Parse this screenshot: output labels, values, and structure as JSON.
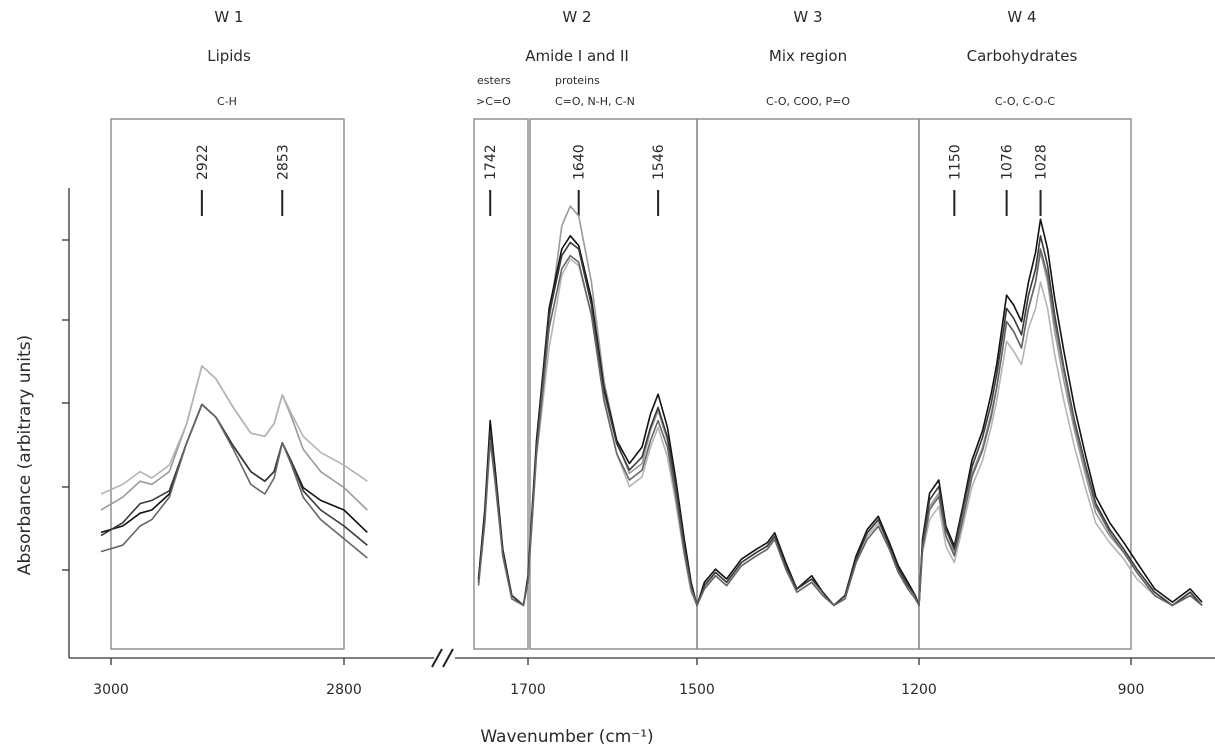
{
  "chart_data": {
    "type": "line",
    "xlabel": "Wavenumber (cm⁻¹)",
    "ylabel": "Absorbance (arbitrary units)",
    "x_axis_break": true,
    "x_reversed": true,
    "panels": [
      {
        "xlim": [
          3015,
          2770
        ],
        "xticks": [
          3000,
          2800
        ]
      },
      {
        "xlim": [
          1760,
          775
        ],
        "xticks": [
          1700,
          1500,
          1200,
          900
        ]
      }
    ],
    "regions": [
      {
        "id": "W 1",
        "name": "Lipids",
        "bonds": "C-H",
        "range": [
          3000,
          2800
        ],
        "peaks": [
          2922,
          2853
        ]
      },
      {
        "id": "",
        "name": "",
        "bonds": ">C=O",
        "sub_label": "esters",
        "range": [
          1760,
          1700
        ],
        "peaks": [
          1742
        ]
      },
      {
        "id": "W 2",
        "name": "Amide I and II",
        "bonds": "C=O, N-H, C-N",
        "sub_label": "proteins",
        "range": [
          1700,
          1500
        ],
        "peaks": [
          1640,
          1546
        ]
      },
      {
        "id": "W 3",
        "name": "Mix region",
        "bonds": "C-O, COO, P=O",
        "range": [
          1500,
          1200
        ],
        "peaks": []
      },
      {
        "id": "W 4",
        "name": "Carbohydrates",
        "bonds": "C-O, C-O-C",
        "range": [
          1200,
          900
        ],
        "peaks": [
          1150,
          1076,
          1028
        ]
      }
    ],
    "series_colors": [
      "#9a9a9a",
      "#b5b5b5",
      "#111111",
      "#3a3a3a",
      "#666666"
    ],
    "series": [
      {
        "lipid": {
          "x": [
            3010,
            2990,
            2975,
            2965,
            2950,
            2935,
            2922,
            2910,
            2895,
            2880,
            2868,
            2860,
            2853,
            2845,
            2835,
            2820,
            2800,
            2780
          ],
          "y": [
            0.25,
            0.29,
            0.34,
            0.33,
            0.37,
            0.52,
            0.7,
            0.66,
            0.57,
            0.49,
            0.48,
            0.52,
            0.61,
            0.54,
            0.44,
            0.37,
            0.32,
            0.25
          ]
        },
        "fp": {
          "x": [
            1755,
            1748,
            1742,
            1736,
            1728,
            1718,
            1705,
            1700,
            1690,
            1675,
            1660,
            1650,
            1640,
            1625,
            1610,
            1595,
            1580,
            1565,
            1555,
            1546,
            1535,
            1525,
            1515,
            1507,
            1500,
            1490,
            1475,
            1460,
            1440,
            1420,
            1405,
            1395,
            1380,
            1365,
            1345,
            1330,
            1315,
            1300,
            1285,
            1270,
            1255,
            1240,
            1228,
            1215,
            1205,
            1200,
            1195,
            1185,
            1172,
            1162,
            1150,
            1138,
            1125,
            1110,
            1098,
            1090,
            1080,
            1076,
            1066,
            1055,
            1045,
            1035,
            1028,
            1018,
            1008,
            995,
            980,
            965,
            950,
            930,
            910,
            890,
            860,
            830,
            800,
            780
          ],
          "y": [
            0.1,
            0.3,
            0.56,
            0.4,
            0.18,
            0.05,
            0.02,
            0.1,
            0.5,
            0.88,
            1.17,
            1.23,
            1.2,
            1.0,
            0.7,
            0.52,
            0.42,
            0.45,
            0.55,
            0.61,
            0.52,
            0.37,
            0.2,
            0.08,
            0.02,
            0.08,
            0.12,
            0.09,
            0.15,
            0.18,
            0.2,
            0.23,
            0.14,
            0.07,
            0.1,
            0.06,
            0.02,
            0.05,
            0.16,
            0.24,
            0.28,
            0.2,
            0.13,
            0.08,
            0.05,
            0.02,
            0.2,
            0.32,
            0.36,
            0.23,
            0.18,
            0.29,
            0.42,
            0.5,
            0.6,
            0.68,
            0.82,
            0.88,
            0.85,
            0.8,
            0.92,
            1.0,
            1.09,
            1.0,
            0.85,
            0.7,
            0.55,
            0.42,
            0.3,
            0.23,
            0.18,
            0.12,
            0.05,
            0.02,
            0.06,
            0.02
          ]
        }
      },
      {
        "lipid": {
          "x": [
            3010,
            2990,
            2975,
            2965,
            2950,
            2935,
            2922,
            2910,
            2895,
            2880,
            2868,
            2860,
            2853,
            2845,
            2835,
            2820,
            2800,
            2780
          ],
          "y": [
            0.3,
            0.33,
            0.37,
            0.35,
            0.39,
            0.52,
            0.7,
            0.66,
            0.57,
            0.49,
            0.48,
            0.52,
            0.61,
            0.55,
            0.48,
            0.43,
            0.39,
            0.34
          ]
        },
        "fp": {
          "x": [
            1755,
            1748,
            1742,
            1736,
            1728,
            1718,
            1705,
            1700,
            1690,
            1675,
            1660,
            1650,
            1640,
            1625,
            1610,
            1595,
            1580,
            1565,
            1555,
            1546,
            1535,
            1525,
            1515,
            1507,
            1500,
            1490,
            1475,
            1460,
            1440,
            1420,
            1405,
            1395,
            1380,
            1365,
            1345,
            1330,
            1315,
            1300,
            1285,
            1270,
            1255,
            1240,
            1228,
            1215,
            1205,
            1200,
            1195,
            1185,
            1172,
            1162,
            1150,
            1138,
            1125,
            1110,
            1098,
            1090,
            1080,
            1076,
            1066,
            1055,
            1045,
            1035,
            1028,
            1018,
            1008,
            995,
            980,
            965,
            950,
            930,
            910,
            890,
            860,
            830,
            800,
            780
          ],
          "y": [
            0.09,
            0.28,
            0.54,
            0.39,
            0.17,
            0.04,
            0.02,
            0.09,
            0.47,
            0.8,
            1.02,
            1.07,
            1.05,
            0.9,
            0.65,
            0.48,
            0.38,
            0.41,
            0.5,
            0.56,
            0.47,
            0.33,
            0.17,
            0.06,
            0.02,
            0.07,
            0.11,
            0.08,
            0.14,
            0.17,
            0.19,
            0.22,
            0.13,
            0.06,
            0.09,
            0.05,
            0.02,
            0.04,
            0.15,
            0.23,
            0.27,
            0.19,
            0.12,
            0.07,
            0.04,
            0.02,
            0.18,
            0.28,
            0.32,
            0.2,
            0.15,
            0.26,
            0.38,
            0.46,
            0.56,
            0.64,
            0.77,
            0.82,
            0.79,
            0.75,
            0.86,
            0.92,
            1.0,
            0.92,
            0.78,
            0.64,
            0.5,
            0.38,
            0.27,
            0.21,
            0.16,
            0.1,
            0.05,
            0.02,
            0.05,
            0.02
          ]
        }
      },
      {
        "lipid": {
          "x": [
            3010,
            2990,
            2975,
            2965,
            2950,
            2935,
            2922,
            2910,
            2895,
            2880,
            2868,
            2860,
            2853,
            2845,
            2835,
            2820,
            2800,
            2780
          ],
          "y": [
            0.18,
            0.2,
            0.24,
            0.25,
            0.3,
            0.46,
            0.58,
            0.54,
            0.45,
            0.37,
            0.34,
            0.37,
            0.46,
            0.4,
            0.32,
            0.28,
            0.25,
            0.18
          ]
        },
        "fp": {
          "x": [
            1755,
            1748,
            1742,
            1736,
            1728,
            1718,
            1705,
            1700,
            1690,
            1675,
            1660,
            1650,
            1640,
            1625,
            1610,
            1595,
            1580,
            1565,
            1555,
            1546,
            1535,
            1525,
            1515,
            1507,
            1500,
            1490,
            1475,
            1460,
            1440,
            1420,
            1405,
            1395,
            1380,
            1365,
            1345,
            1330,
            1315,
            1300,
            1285,
            1270,
            1255,
            1240,
            1228,
            1215,
            1205,
            1200,
            1195,
            1185,
            1172,
            1162,
            1150,
            1138,
            1125,
            1110,
            1098,
            1090,
            1080,
            1076,
            1066,
            1055,
            1045,
            1035,
            1028,
            1018,
            1008,
            995,
            980,
            965,
            950,
            930,
            910,
            890,
            860,
            830,
            800,
            780
          ],
          "y": [
            0.1,
            0.31,
            0.58,
            0.42,
            0.19,
            0.05,
            0.02,
            0.11,
            0.52,
            0.92,
            1.1,
            1.14,
            1.11,
            0.95,
            0.68,
            0.52,
            0.45,
            0.5,
            0.6,
            0.66,
            0.56,
            0.4,
            0.22,
            0.09,
            0.02,
            0.09,
            0.13,
            0.1,
            0.16,
            0.19,
            0.21,
            0.24,
            0.15,
            0.07,
            0.11,
            0.06,
            0.02,
            0.05,
            0.17,
            0.25,
            0.29,
            0.21,
            0.14,
            0.09,
            0.05,
            0.02,
            0.22,
            0.36,
            0.4,
            0.26,
            0.2,
            0.32,
            0.46,
            0.55,
            0.66,
            0.75,
            0.9,
            0.96,
            0.93,
            0.88,
            1.0,
            1.09,
            1.19,
            1.1,
            0.95,
            0.79,
            0.62,
            0.48,
            0.35,
            0.27,
            0.21,
            0.15,
            0.07,
            0.03,
            0.07,
            0.03
          ]
        }
      },
      {
        "lipid": {
          "x": [
            3010,
            2990,
            2975,
            2965,
            2950,
            2935,
            2922,
            2910,
            2895,
            2880,
            2868,
            2860,
            2853,
            2845,
            2835,
            2820,
            2800,
            2780
          ],
          "y": [
            0.17,
            0.21,
            0.27,
            0.28,
            0.31,
            0.46,
            0.58,
            0.54,
            0.45,
            0.37,
            0.34,
            0.37,
            0.46,
            0.4,
            0.31,
            0.25,
            0.2,
            0.14
          ]
        },
        "fp": {
          "x": [
            1755,
            1748,
            1742,
            1736,
            1728,
            1718,
            1705,
            1700,
            1690,
            1675,
            1660,
            1650,
            1640,
            1625,
            1610,
            1595,
            1580,
            1565,
            1555,
            1546,
            1535,
            1525,
            1515,
            1507,
            1500,
            1490,
            1475,
            1460,
            1440,
            1420,
            1405,
            1395,
            1380,
            1365,
            1345,
            1330,
            1315,
            1300,
            1285,
            1270,
            1255,
            1240,
            1228,
            1215,
            1205,
            1200,
            1195,
            1185,
            1172,
            1162,
            1150,
            1138,
            1125,
            1110,
            1098,
            1090,
            1080,
            1076,
            1066,
            1055,
            1045,
            1035,
            1028,
            1018,
            1008,
            995,
            980,
            965,
            950,
            930,
            910,
            890,
            860,
            830,
            800,
            780
          ],
          "y": [
            0.09,
            0.29,
            0.55,
            0.4,
            0.18,
            0.05,
            0.02,
            0.1,
            0.5,
            0.9,
            1.08,
            1.12,
            1.1,
            0.93,
            0.67,
            0.51,
            0.43,
            0.47,
            0.56,
            0.62,
            0.53,
            0.38,
            0.2,
            0.08,
            0.02,
            0.08,
            0.12,
            0.09,
            0.15,
            0.18,
            0.2,
            0.23,
            0.14,
            0.07,
            0.1,
            0.06,
            0.02,
            0.05,
            0.16,
            0.24,
            0.28,
            0.2,
            0.13,
            0.08,
            0.05,
            0.02,
            0.21,
            0.34,
            0.38,
            0.25,
            0.19,
            0.31,
            0.44,
            0.53,
            0.63,
            0.72,
            0.86,
            0.92,
            0.89,
            0.84,
            0.96,
            1.04,
            1.14,
            1.05,
            0.9,
            0.74,
            0.58,
            0.45,
            0.33,
            0.25,
            0.19,
            0.13,
            0.06,
            0.02,
            0.06,
            0.02
          ]
        }
      },
      {
        "lipid": {
          "x": [
            3010,
            2990,
            2975,
            2965,
            2950,
            2935,
            2922,
            2910,
            2895,
            2880,
            2868,
            2860,
            2853,
            2845,
            2835,
            2820,
            2800,
            2780
          ],
          "y": [
            0.12,
            0.14,
            0.2,
            0.22,
            0.29,
            0.46,
            0.58,
            0.54,
            0.44,
            0.33,
            0.3,
            0.35,
            0.46,
            0.39,
            0.29,
            0.22,
            0.16,
            0.1
          ]
        },
        "fp": {
          "x": [
            1755,
            1748,
            1742,
            1736,
            1728,
            1718,
            1705,
            1700,
            1690,
            1675,
            1660,
            1650,
            1640,
            1625,
            1610,
            1595,
            1580,
            1565,
            1555,
            1546,
            1535,
            1525,
            1515,
            1507,
            1500,
            1490,
            1475,
            1460,
            1440,
            1420,
            1405,
            1395,
            1380,
            1365,
            1345,
            1330,
            1315,
            1300,
            1285,
            1270,
            1255,
            1240,
            1228,
            1215,
            1205,
            1200,
            1195,
            1185,
            1172,
            1162,
            1150,
            1138,
            1125,
            1110,
            1098,
            1090,
            1080,
            1076,
            1066,
            1055,
            1045,
            1035,
            1028,
            1018,
            1008,
            995,
            980,
            965,
            950,
            930,
            910,
            890,
            860,
            830,
            800,
            780
          ],
          "y": [
            0.08,
            0.27,
            0.52,
            0.38,
            0.17,
            0.04,
            0.02,
            0.09,
            0.48,
            0.86,
            1.04,
            1.08,
            1.06,
            0.9,
            0.64,
            0.48,
            0.4,
            0.43,
            0.52,
            0.58,
            0.5,
            0.35,
            0.18,
            0.07,
            0.02,
            0.07,
            0.11,
            0.08,
            0.14,
            0.17,
            0.19,
            0.22,
            0.13,
            0.06,
            0.09,
            0.05,
            0.02,
            0.04,
            0.15,
            0.22,
            0.26,
            0.19,
            0.12,
            0.07,
            0.04,
            0.02,
            0.19,
            0.31,
            0.35,
            0.23,
            0.17,
            0.28,
            0.41,
            0.49,
            0.59,
            0.68,
            0.82,
            0.88,
            0.85,
            0.8,
            0.92,
            1.0,
            1.1,
            1.02,
            0.88,
            0.73,
            0.57,
            0.44,
            0.32,
            0.24,
            0.18,
            0.12,
            0.05,
            0.02,
            0.05,
            0.02
          ]
        }
      }
    ]
  }
}
